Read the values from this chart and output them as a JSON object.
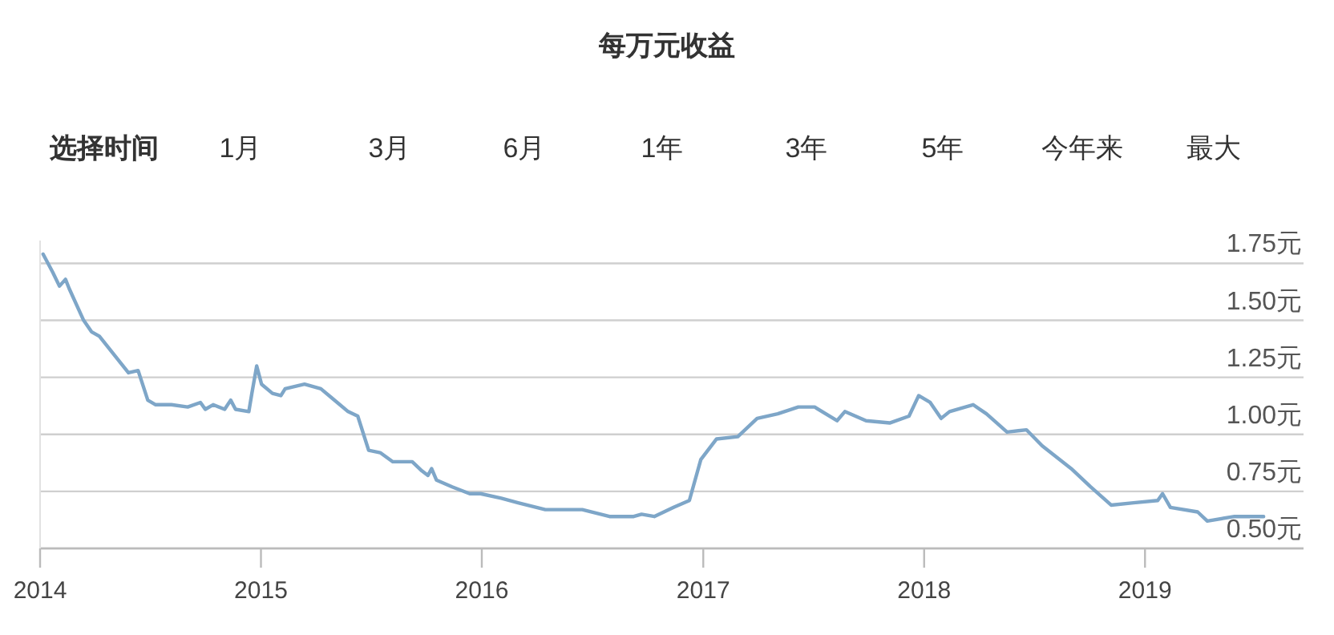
{
  "chart_data": {
    "type": "line",
    "title": "每万元收益",
    "annotations": [
      "选择时间",
      "1月",
      "3月",
      "6月",
      "1年",
      "3年",
      "5年",
      "今年来",
      "最大"
    ],
    "x": [
      "2014-01-06",
      "2014-01-22",
      "2014-02-02",
      "2014-02-12",
      "2014-02-18",
      "2014-03-14",
      "2014-03-27",
      "2014-04-09",
      "2014-05-27",
      "2014-06-12",
      "2014-06-28",
      "2014-07-11",
      "2014-08-06",
      "2014-09-02",
      "2014-09-23",
      "2014-10-01",
      "2014-10-14",
      "2014-11-02",
      "2014-11-12",
      "2014-11-20",
      "2014-12-12",
      "2014-12-17",
      "2014-12-25",
      "2015-01-02",
      "2015-01-20",
      "2015-02-03",
      "2015-02-10",
      "2015-03-14",
      "2015-04-10",
      "2015-04-28",
      "2015-05-25",
      "2015-06-10",
      "2015-06-28",
      "2015-07-17",
      "2015-08-07",
      "2015-09-08",
      "2015-09-24",
      "2015-10-04",
      "2015-10-10",
      "2015-10-18",
      "2015-11-13",
      "2015-12-12",
      "2015-12-30",
      "2016-02-02",
      "2016-03-01",
      "2016-04-15",
      "2016-06-15",
      "2016-07-30",
      "2016-09-08",
      "2016-09-21",
      "2016-10-12",
      "2016-11-13",
      "2016-12-09",
      "2016-12-28",
      "2017-01-23",
      "2017-02-27",
      "2017-03-31",
      "2017-05-04",
      "2017-06-07",
      "2017-07-04",
      "2017-08-10",
      "2017-08-23",
      "2017-09-27",
      "2017-11-05",
      "2017-12-07",
      "2017-12-23",
      "2018-01-11",
      "2018-01-29",
      "2018-02-12",
      "2018-03-23",
      "2018-04-14",
      "2018-05-18",
      "2018-06-19",
      "2018-07-15",
      "2018-09-01",
      "2018-10-03",
      "2018-11-06",
      "2018-12-13",
      "2019-01-22",
      "2019-01-30",
      "2019-02-12",
      "2019-03-29",
      "2019-04-14",
      "2019-05-29",
      "2019-07-16"
    ],
    "series": [
      {
        "color": "#7ea6c8",
        "values": [
          1.79,
          1.71,
          1.65,
          1.68,
          1.64,
          1.5,
          1.45,
          1.43,
          1.27,
          1.28,
          1.15,
          1.13,
          1.13,
          1.12,
          1.14,
          1.11,
          1.13,
          1.11,
          1.15,
          1.11,
          1.1,
          1.18,
          1.3,
          1.22,
          1.18,
          1.17,
          1.2,
          1.22,
          1.2,
          1.16,
          1.1,
          1.08,
          0.93,
          0.92,
          0.88,
          0.88,
          0.84,
          0.82,
          0.85,
          0.8,
          0.77,
          0.74,
          0.74,
          0.72,
          0.7,
          0.67,
          0.67,
          0.64,
          0.64,
          0.65,
          0.64,
          0.68,
          0.71,
          0.89,
          0.98,
          0.99,
          1.07,
          1.09,
          1.12,
          1.12,
          1.06,
          1.1,
          1.06,
          1.05,
          1.08,
          1.17,
          1.14,
          1.07,
          1.1,
          1.13,
          1.09,
          1.01,
          1.02,
          0.95,
          0.85,
          0.77,
          0.69,
          0.7,
          0.71,
          0.74,
          0.68,
          0.66,
          0.62,
          0.64,
          0.64
        ]
      }
    ],
    "xlim": [
      "2014-01-01",
      "2019-09-20"
    ],
    "xticks": [
      {
        "value": "2014-01-01",
        "label": "2014"
      },
      {
        "value": "2015-01-01",
        "label": "2015"
      },
      {
        "value": "2016-01-01",
        "label": "2016"
      },
      {
        "value": "2017-01-01",
        "label": "2017"
      },
      {
        "value": "2018-01-01",
        "label": "2018"
      },
      {
        "value": "2019-01-01",
        "label": "2019"
      }
    ],
    "ylim": [
      0.5,
      1.85
    ],
    "yticks": [
      {
        "value": 0.5,
        "label": "0.50元"
      },
      {
        "value": 0.75,
        "label": "0.75元"
      },
      {
        "value": 1.0,
        "label": "1.00元"
      },
      {
        "value": 1.25,
        "label": "1.25元"
      },
      {
        "value": 1.5,
        "label": "1.50元"
      },
      {
        "value": 1.75,
        "label": "1.75元"
      }
    ],
    "grid": "y"
  }
}
